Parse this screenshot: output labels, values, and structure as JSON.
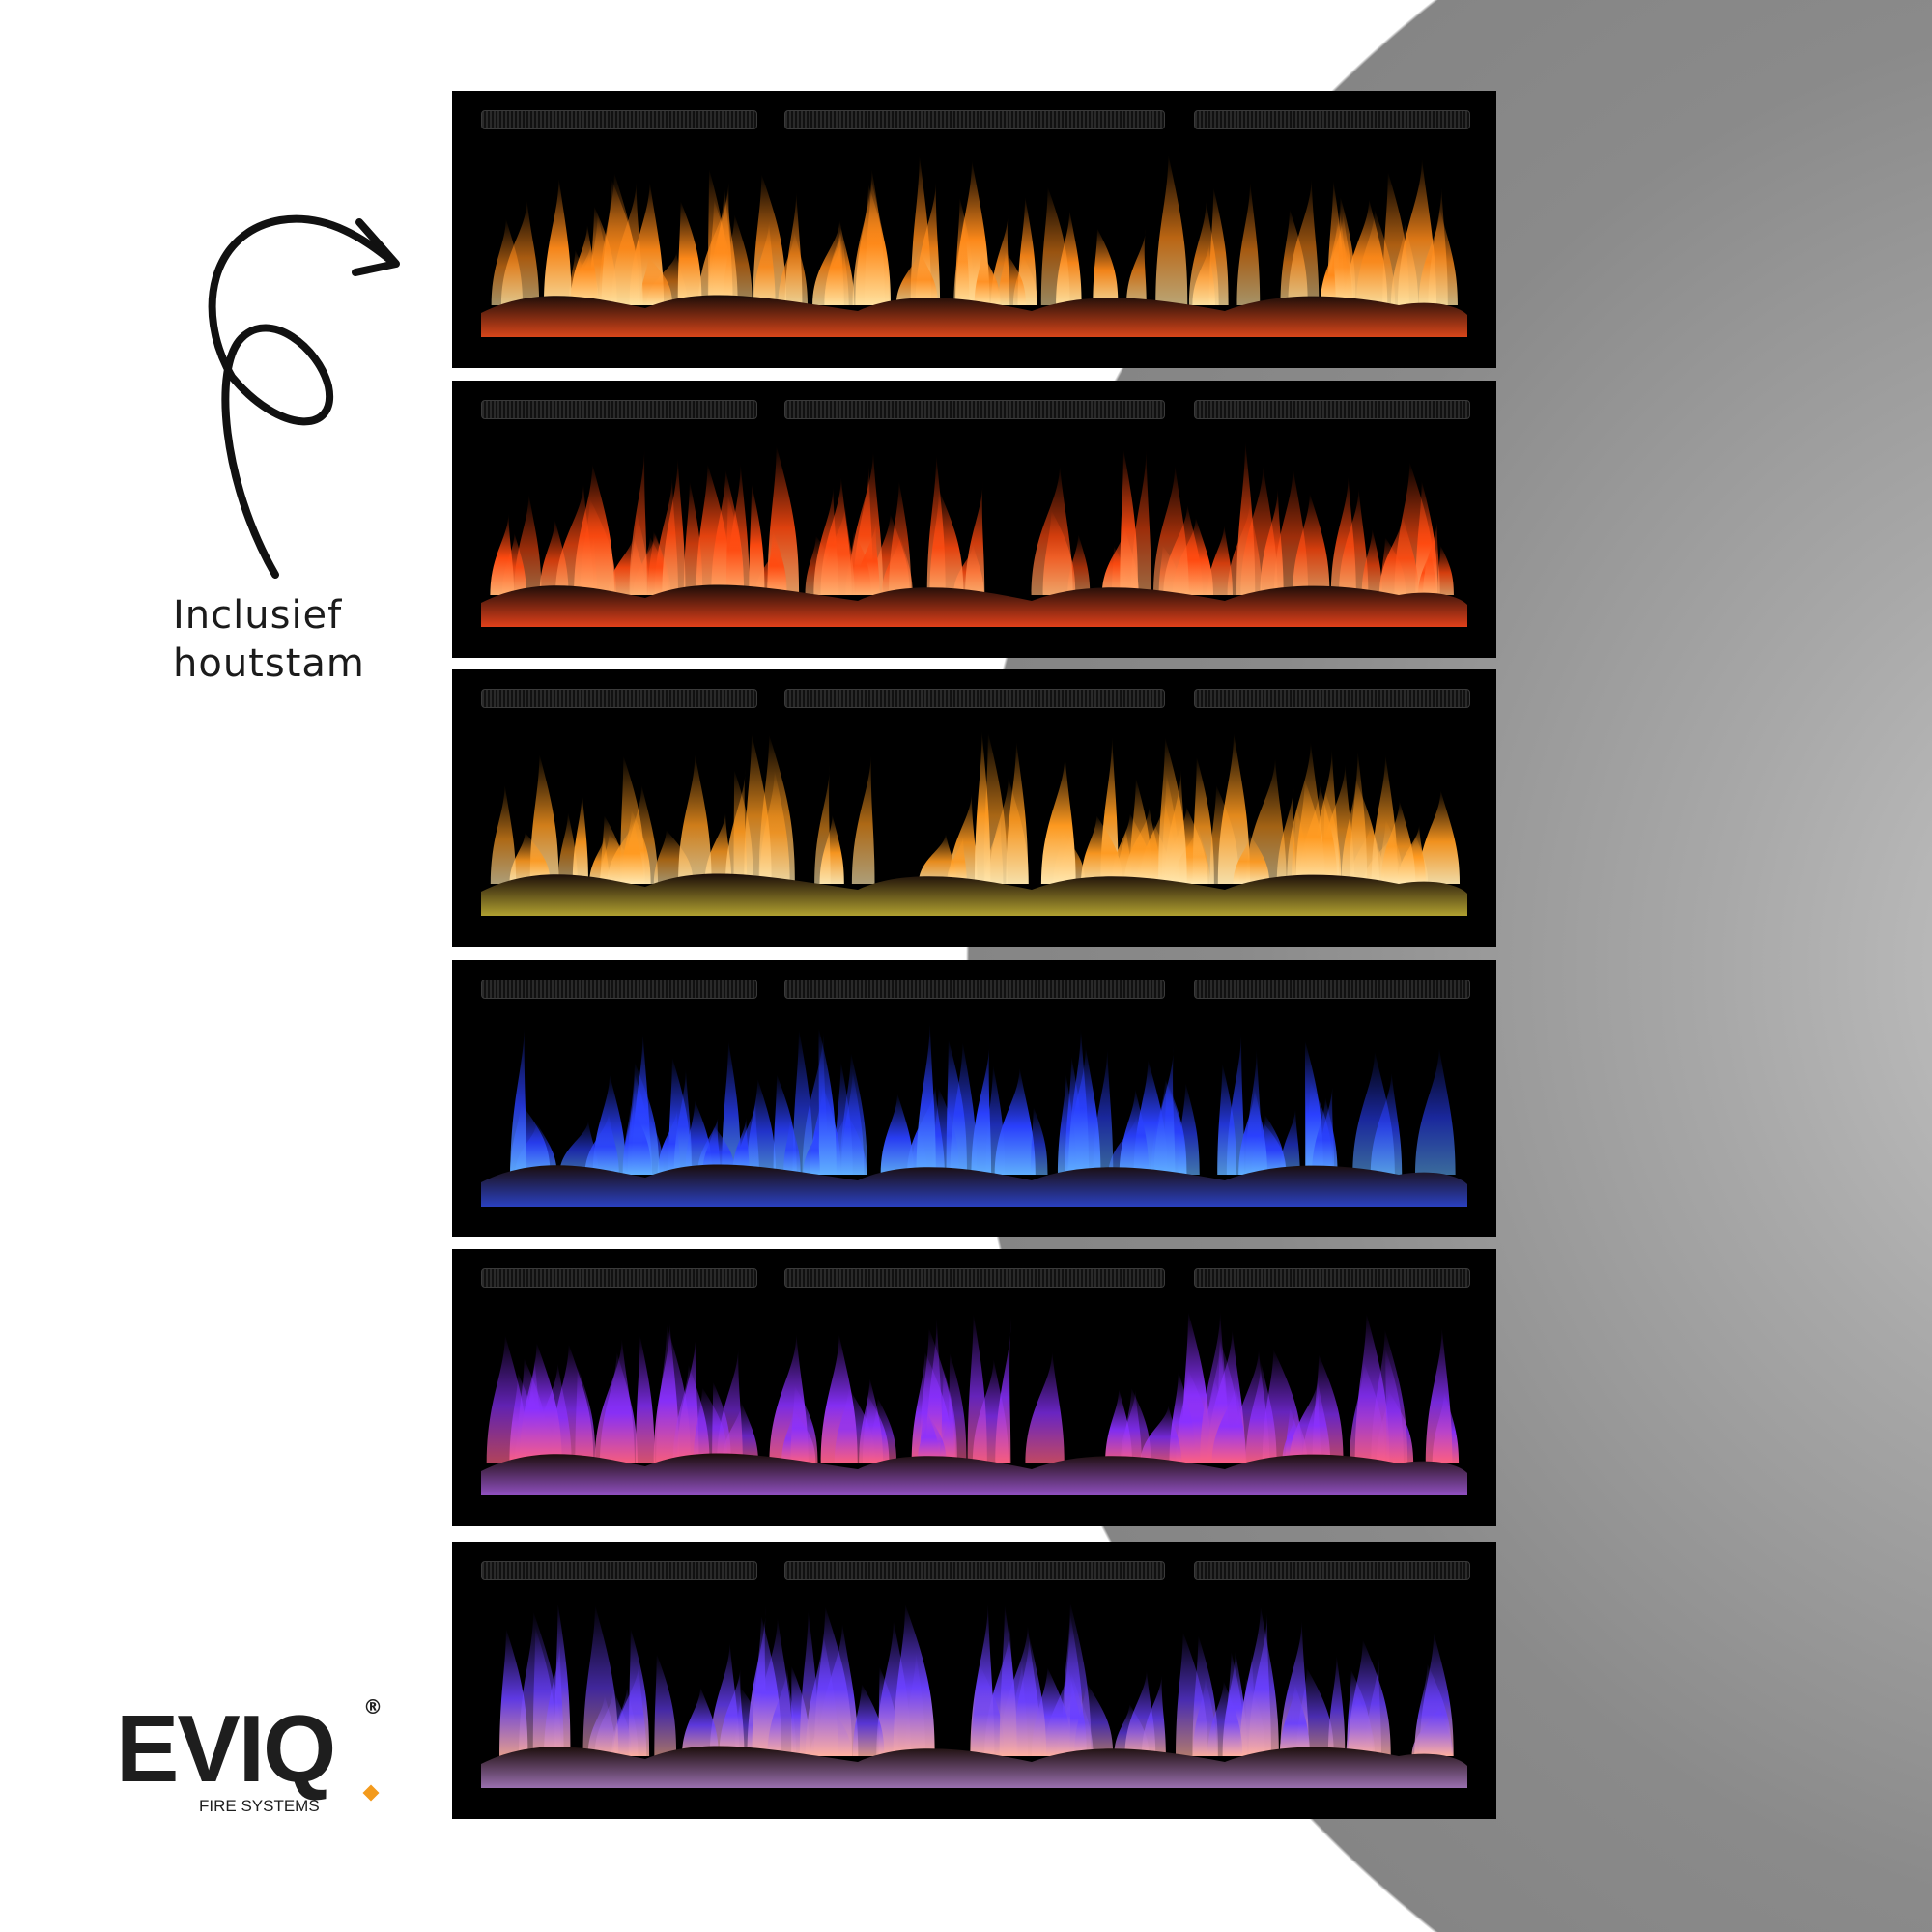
{
  "caption": {
    "line1": "Inclusief",
    "line2": "houtstam"
  },
  "logo": {
    "word": "EVIQ",
    "registered": "®",
    "tagline": "FIRE SYSTEMS",
    "accent_color": "#f39a1c"
  },
  "panels": [
    {
      "name": "orange",
      "flame": "#ff8a1a",
      "core": "#ffe2a0",
      "bed": "#d8461a"
    },
    {
      "name": "red",
      "flame": "#ff4a10",
      "core": "#ffb070",
      "bed": "#e0401a"
    },
    {
      "name": "yellow",
      "flame": "#ff9a20",
      "core": "#ffe8b0",
      "bed": "#b0a030"
    },
    {
      "name": "blue",
      "flame": "#2a40ff",
      "core": "#60b0ff",
      "bed": "#2a40c0"
    },
    {
      "name": "purple-red",
      "flame": "#8a30ff",
      "core": "#ff6080",
      "bed": "#9050c0"
    },
    {
      "name": "purple",
      "flame": "#6a40ff",
      "core": "#ffb0a0",
      "bed": "#9a70b0"
    }
  ]
}
